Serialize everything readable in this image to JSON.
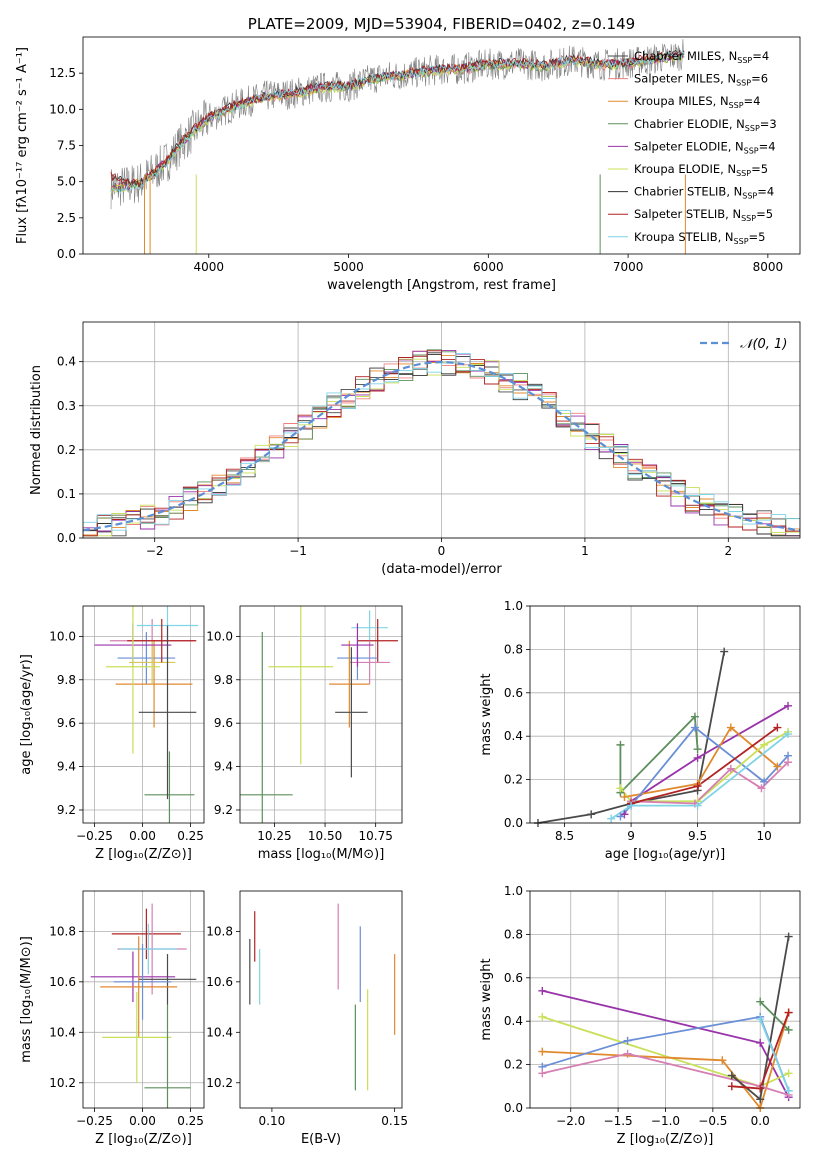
{
  "figure_title": "PLATE=2009, MJD=53904, FIBERID=0402, z=0.149",
  "chart_data": [
    {
      "id": "spectrum",
      "type": "line",
      "title": "PLATE=2009, MJD=53904, FIBERID=0402, z=0.149",
      "xlabel": "wavelength [Angstrom, rest frame]",
      "ylabel": "Flux [fλ10⁻¹⁷ erg cm⁻² s⁻¹ A⁻¹]",
      "xlim": [
        3100,
        8230
      ],
      "ylim": [
        0,
        15
      ],
      "xticks": [
        4000,
        5000,
        6000,
        7000,
        8000
      ],
      "yticks": [
        0.0,
        2.5,
        5.0,
        7.5,
        10.0,
        12.5
      ],
      "grid": false,
      "legend_placement": "top-right",
      "x": [
        3300,
        3400,
        3500,
        3600,
        3700,
        3800,
        3900,
        4000,
        4200,
        4400,
        4600,
        4800,
        5000,
        5200,
        5400,
        5600,
        5800,
        6000,
        6200,
        6400,
        6600,
        6800,
        7000,
        7200,
        7400
      ],
      "series": [
        {
          "name": "Chabrier MILES, N_SSP=4",
          "color": "#4a4a4a",
          "values": [
            4.6,
            4.7,
            4.9,
            5.6,
            6.4,
            7.6,
            8.6,
            9.4,
            10.3,
            10.9,
            11.1,
            11.5,
            11.6,
            12.2,
            12.4,
            12.7,
            12.8,
            13.1,
            13.2,
            13.0,
            13.4,
            13.1,
            13.2,
            13.5,
            13.8
          ]
        },
        {
          "name": "Salpeter MILES, N_SSP=6",
          "color": "#f08080",
          "values": [
            4.6,
            4.7,
            4.8,
            5.5,
            6.3,
            7.5,
            8.5,
            9.3,
            10.2,
            10.8,
            11.0,
            11.4,
            11.5,
            12.1,
            12.3,
            12.6,
            12.7,
            13.0,
            13.1,
            12.9,
            13.3,
            13.0,
            13.1,
            13.4,
            13.7
          ]
        },
        {
          "name": "Kroupa MILES, N_SSP=4",
          "color": "#e08a2e",
          "values": [
            4.6,
            4.7,
            4.9,
            5.5,
            6.4,
            7.6,
            8.6,
            9.4,
            10.3,
            10.8,
            11.1,
            11.5,
            11.6,
            12.2,
            12.4,
            12.7,
            12.8,
            13.1,
            13.2,
            13.0,
            13.4,
            13.1,
            13.2,
            13.5,
            13.8
          ]
        },
        {
          "name": "Chabrier ELODIE, N_SSP=3",
          "color": "#5c8f5c",
          "values": [
            4.5,
            4.6,
            4.8,
            5.4,
            6.3,
            7.5,
            8.5,
            9.3,
            10.2,
            10.8,
            11.0,
            11.4,
            11.5,
            12.1,
            12.3,
            12.6,
            12.7,
            13.0,
            13.1,
            12.9,
            13.3,
            13.0,
            13.1,
            13.4,
            13.7
          ]
        },
        {
          "name": "Salpeter ELODIE, N_SSP=4",
          "color": "#9933aa",
          "values": [
            4.6,
            4.7,
            4.9,
            5.6,
            6.4,
            7.6,
            8.6,
            9.4,
            10.3,
            10.9,
            11.1,
            11.5,
            11.6,
            12.2,
            12.4,
            12.7,
            12.8,
            13.1,
            13.2,
            13.0,
            13.4,
            13.1,
            13.2,
            13.5,
            13.8
          ]
        },
        {
          "name": "Kroupa ELODIE, N_SSP=5",
          "color": "#c8e05a",
          "values": [
            4.5,
            4.6,
            4.8,
            5.5,
            6.3,
            7.5,
            8.5,
            9.3,
            10.2,
            10.8,
            11.0,
            11.4,
            11.5,
            12.1,
            12.3,
            12.6,
            12.7,
            13.0,
            13.1,
            12.9,
            13.3,
            13.0,
            13.1,
            13.4,
            13.7
          ]
        },
        {
          "name": "Chabrier STELIB, N_SSP=4",
          "color": "#333333",
          "values": [
            5.5,
            5.0,
            4.8,
            5.6,
            6.5,
            7.7,
            8.7,
            9.5,
            10.4,
            10.9,
            11.2,
            11.6,
            11.7,
            12.3,
            12.5,
            12.8,
            12.9,
            13.2,
            13.3,
            13.1,
            13.5,
            13.2,
            13.3,
            13.6,
            13.9
          ]
        },
        {
          "name": "Salpeter STELIB, N_SSP=5",
          "color": "#b22222",
          "values": [
            5.4,
            5.0,
            4.8,
            5.6,
            6.5,
            7.7,
            8.7,
            9.5,
            10.4,
            10.9,
            11.2,
            11.6,
            11.7,
            12.3,
            12.5,
            12.8,
            12.9,
            13.2,
            13.3,
            13.1,
            13.5,
            13.2,
            13.3,
            13.6,
            13.9
          ]
        },
        {
          "name": "Kroupa STELIB, N_SSP=5",
          "color": "#7fd4e6",
          "values": [
            4.4,
            4.5,
            4.7,
            5.4,
            6.3,
            7.5,
            8.5,
            9.3,
            10.2,
            10.9,
            11.1,
            11.5,
            11.6,
            12.2,
            12.4,
            12.7,
            12.8,
            13.1,
            13.2,
            13.0,
            13.4,
            13.1,
            13.2,
            13.5,
            13.8
          ]
        }
      ]
    },
    {
      "id": "residuals",
      "type": "histogram",
      "xlabel": "(data-model)/error",
      "ylabel": "Normed distribution",
      "xlim": [
        -2.5,
        2.5
      ],
      "ylim": [
        0,
        0.49
      ],
      "xticks": [
        -2,
        -1,
        0,
        1,
        2
      ],
      "xticklabels": [
        "−2",
        "−1",
        "0",
        "1",
        "2"
      ],
      "yticks": [
        0.0,
        0.1,
        0.2,
        0.3,
        0.4
      ],
      "grid": true,
      "legend_placement": "top-right",
      "legend_label": "𝒩(0, 1)",
      "bin_width": 0.1
    },
    {
      "id": "z-age",
      "type": "errorbar",
      "xlabel": "Z [log₁₀(Z/Z⊙)]",
      "ylabel": "age  [log₁₀(age/yr)]",
      "xlim": [
        -0.31,
        0.32
      ],
      "ylim": [
        9.14,
        10.14
      ],
      "xticks": [
        -0.25,
        0.0,
        0.25
      ],
      "xticklabels": [
        "−0.25",
        "0.00",
        "0.25"
      ],
      "yticks": [
        9.2,
        9.4,
        9.6,
        9.8,
        10.0
      ],
      "grid": true,
      "points": [
        {
          "x": 0.02,
          "xerr": 0.15,
          "y": 9.9,
          "yerr": 0.12,
          "color": "#6a8fd6"
        },
        {
          "x": 0.05,
          "xerr": 0.22,
          "y": 9.98,
          "yerr": 0.1,
          "color": "#d67fb2"
        },
        {
          "x": 0.06,
          "xerr": 0.2,
          "y": 9.78,
          "yerr": 0.2,
          "color": "#e08a2e"
        },
        {
          "x": 0.13,
          "xerr": 0.16,
          "y": 10.05,
          "yerr": 0.1,
          "color": "#7fd4e6"
        },
        {
          "x": 0.14,
          "xerr": 0.13,
          "y": 9.27,
          "yerr": 0.2,
          "color": "#5c8f5c"
        },
        {
          "x": 0.05,
          "xerr": 0.12,
          "y": 9.88,
          "yerr": 0.1,
          "color": "#d6c95a"
        },
        {
          "x": -0.05,
          "xerr": 0.2,
          "y": 9.96,
          "yerr": 0.1,
          "color": "#9933aa"
        },
        {
          "x": 0.1,
          "xerr": 0.18,
          "y": 9.98,
          "yerr": 0.1,
          "color": "#b22222"
        },
        {
          "x": -0.05,
          "xerr": 0.14,
          "y": 9.86,
          "yerr": 0.4,
          "color": "#c8e05a"
        },
        {
          "x": 0.13,
          "xerr": 0.15,
          "y": 9.65,
          "yerr": 0.4,
          "color": "#4a4a4a"
        }
      ]
    },
    {
      "id": "mass-age",
      "type": "errorbar",
      "xlabel": "mass [log₁₀(M/M⊙)]",
      "ylabel": "",
      "xlim": [
        10.08,
        10.88
      ],
      "ylim": [
        9.14,
        10.14
      ],
      "xticks": [
        10.25,
        10.5,
        10.75
      ],
      "xticklabels": [
        "10.25",
        "10.50",
        "10.75"
      ],
      "yticks": [
        9.2,
        9.4,
        9.6,
        9.8,
        10.0
      ],
      "grid": true,
      "points": [
        {
          "x": 10.72,
          "xerr": 0.09,
          "y": 10.04,
          "yerr": 0.08,
          "color": "#7fd4e6"
        },
        {
          "x": 10.76,
          "xerr": 0.1,
          "y": 9.98,
          "yerr": 0.1,
          "color": "#b22222"
        },
        {
          "x": 10.72,
          "xerr": 0.1,
          "y": 9.88,
          "yerr": 0.1,
          "color": "#d67fb2"
        },
        {
          "x": 10.66,
          "xerr": 0.1,
          "y": 9.9,
          "yerr": 0.1,
          "color": "#6a8fd6"
        },
        {
          "x": 10.62,
          "xerr": 0.1,
          "y": 9.78,
          "yerr": 0.2,
          "color": "#e08a2e"
        },
        {
          "x": 10.63,
          "xerr": 0.08,
          "y": 9.65,
          "yerr": 0.3,
          "color": "#4a4a4a"
        },
        {
          "x": 10.38,
          "xerr": 0.16,
          "y": 9.86,
          "yerr": 0.45,
          "color": "#c8e05a"
        },
        {
          "x": 10.19,
          "xerr": 0.15,
          "y": 9.27,
          "yerr": 0.75,
          "color": "#5c8f5c"
        },
        {
          "x": 10.66,
          "xerr": 0.08,
          "y": 9.96,
          "yerr": 0.1,
          "color": "#9933aa"
        }
      ]
    },
    {
      "id": "age-weight",
      "type": "line",
      "xlabel": "age  [log₁₀(age/yr)]",
      "ylabel": "mass weight",
      "xlim": [
        8.24,
        10.27
      ],
      "ylim": [
        0,
        1
      ],
      "xticks": [
        8.5,
        9.0,
        9.5,
        10.0
      ],
      "yticks": [
        0.0,
        0.2,
        0.4,
        0.6,
        0.8,
        1.0
      ],
      "grid": true,
      "series": [
        {
          "color": "#4a4a4a",
          "x": [
            8.3,
            8.7,
            9.0,
            9.5,
            9.7
          ],
          "y": [
            0.0,
            0.04,
            0.09,
            0.15,
            0.79
          ]
        },
        {
          "color": "#9933aa",
          "x": [
            8.95,
            9.0,
            9.5,
            10.18
          ],
          "y": [
            0.04,
            0.1,
            0.3,
            0.54
          ]
        },
        {
          "color": "#e08a2e",
          "x": [
            8.95,
            9.5,
            9.75,
            10.1
          ],
          "y": [
            0.12,
            0.18,
            0.44,
            0.26
          ]
        },
        {
          "color": "#5c8f5c",
          "x": [
            8.92,
            8.92,
            9.48,
            9.5
          ],
          "y": [
            0.36,
            0.14,
            0.49,
            0.34
          ]
        },
        {
          "color": "#6a8fd6",
          "x": [
            8.92,
            9.0,
            9.48,
            10.0,
            10.18
          ],
          "y": [
            0.03,
            0.08,
            0.44,
            0.19,
            0.31
          ]
        },
        {
          "color": "#c8e05a",
          "x": [
            8.92,
            9.0,
            9.5,
            10.0,
            10.18
          ],
          "y": [
            0.16,
            0.1,
            0.1,
            0.36,
            0.42
          ]
        },
        {
          "color": "#d67fb2",
          "x": [
            9.0,
            9.48,
            9.75,
            9.98,
            10.18
          ],
          "y": [
            0.1,
            0.09,
            0.25,
            0.16,
            0.28
          ]
        },
        {
          "color": "#b22222",
          "x": [
            9.0,
            9.5,
            10.1
          ],
          "y": [
            0.09,
            0.17,
            0.44
          ]
        },
        {
          "color": "#7fd4e6",
          "x": [
            8.85,
            9.0,
            9.5,
            10.18
          ],
          "y": [
            0.02,
            0.08,
            0.08,
            0.41
          ]
        }
      ]
    },
    {
      "id": "z-mass",
      "type": "errorbar",
      "xlabel": "Z [log₁₀(Z/Z⊙)]",
      "ylabel": "mass [log₁₀(M/M⊙)]",
      "xlim": [
        -0.31,
        0.32
      ],
      "ylim": [
        10.1,
        10.96
      ],
      "xticks": [
        -0.25,
        0.0,
        0.25
      ],
      "xticklabels": [
        "−0.25",
        "0.00",
        "0.25"
      ],
      "yticks": [
        10.2,
        10.4,
        10.6,
        10.8
      ],
      "grid": true,
      "points": [
        {
          "x": 0.02,
          "xerr": 0.18,
          "y": 10.79,
          "yerr": 0.1,
          "color": "#b22222"
        },
        {
          "x": 0.05,
          "xerr": 0.18,
          "y": 10.73,
          "yerr": 0.18,
          "color": "#d67fb2"
        },
        {
          "x": 0.03,
          "xerr": 0.15,
          "y": 10.73,
          "yerr": 0.1,
          "color": "#7fd4e6"
        },
        {
          "x": -0.05,
          "xerr": 0.22,
          "y": 10.62,
          "yerr": 0.1,
          "color": "#9933aa"
        },
        {
          "x": 0.13,
          "xerr": 0.15,
          "y": 10.61,
          "yerr": 0.1,
          "color": "#4a4a4a"
        },
        {
          "x": -0.02,
          "xerr": 0.2,
          "y": 10.58,
          "yerr": 0.2,
          "color": "#e08a2e"
        },
        {
          "x": 0.0,
          "xerr": 0.15,
          "y": 10.6,
          "yerr": 0.15,
          "color": "#6a8fd6"
        },
        {
          "x": -0.03,
          "xerr": 0.18,
          "y": 10.38,
          "yerr": 0.18,
          "color": "#c8e05a"
        },
        {
          "x": 0.13,
          "xerr": 0.12,
          "y": 10.18,
          "yerr": 0.33,
          "color": "#5c8f5c"
        }
      ]
    },
    {
      "id": "ebv-mass",
      "type": "errorbar",
      "xlabel": "E(B-V)",
      "ylabel": "",
      "xlim": [
        0.087,
        0.153
      ],
      "ylim": [
        10.1,
        10.96
      ],
      "xticks": [
        0.1,
        0.15
      ],
      "xticklabels": [
        "0.10",
        "0.15"
      ],
      "yticks": [
        10.2,
        10.4,
        10.6,
        10.8
      ],
      "grid": false,
      "points": [
        {
          "x": 0.091,
          "y": 10.64,
          "yerr": 0.13,
          "color": "#4a4a4a"
        },
        {
          "x": 0.093,
          "y": 10.78,
          "yerr": 0.1,
          "color": "#b22222"
        },
        {
          "x": 0.095,
          "y": 10.62,
          "yerr": 0.11,
          "color": "#7fd4e6"
        },
        {
          "x": 0.127,
          "y": 10.74,
          "yerr": 0.17,
          "color": "#d67fb2"
        },
        {
          "x": 0.134,
          "y": 10.34,
          "yerr": 0.17,
          "color": "#5c8f5c"
        },
        {
          "x": 0.136,
          "y": 10.67,
          "yerr": 0.15,
          "color": "#6a8fd6"
        },
        {
          "x": 0.139,
          "y": 10.37,
          "yerr": 0.2,
          "color": "#c8e05a"
        },
        {
          "x": 0.15,
          "y": 10.55,
          "yerr": 0.16,
          "color": "#e08a2e"
        }
      ]
    },
    {
      "id": "z-weight",
      "type": "line",
      "xlabel": "Z [log₁₀(Z/Z⊙)]",
      "ylabel": "mass weight",
      "xlim": [
        -2.43,
        0.42
      ],
      "ylim": [
        0,
        1
      ],
      "xticks": [
        -2.0,
        -1.5,
        -1.0,
        -0.5,
        0.0
      ],
      "xticklabels": [
        "−2.0",
        "−1.5",
        "−1.0",
        "−0.5",
        "0.0"
      ],
      "yticks": [
        0.0,
        0.2,
        0.4,
        0.6,
        0.8,
        1.0
      ],
      "grid": true,
      "series": [
        {
          "color": "#9933aa",
          "x": [
            -2.3,
            0.0,
            0.3
          ],
          "y": [
            0.54,
            0.3,
            0.05
          ]
        },
        {
          "color": "#c8e05a",
          "x": [
            -2.3,
            0.0,
            0.3
          ],
          "y": [
            0.42,
            0.1,
            0.16
          ]
        },
        {
          "color": "#e08a2e",
          "x": [
            -2.3,
            -0.4,
            0.0,
            0.3
          ],
          "y": [
            0.26,
            0.22,
            0.0,
            0.44
          ]
        },
        {
          "color": "#6a8fd6",
          "x": [
            -2.3,
            -1.4,
            0.0,
            0.3
          ],
          "y": [
            0.19,
            0.31,
            0.42,
            0.08
          ]
        },
        {
          "color": "#d67fb2",
          "x": [
            -2.3,
            -1.4,
            0.0,
            0.3
          ],
          "y": [
            0.16,
            0.25,
            0.1,
            0.06
          ]
        },
        {
          "color": "#4a4a4a",
          "x": [
            -0.3,
            0.0,
            0.3
          ],
          "y": [
            0.15,
            0.04,
            0.79
          ]
        },
        {
          "color": "#5c8f5c",
          "x": [
            0.0,
            0.3
          ],
          "y": [
            0.49,
            0.36
          ]
        },
        {
          "color": "#b22222",
          "x": [
            -0.3,
            0.0,
            0.3
          ],
          "y": [
            0.1,
            0.09,
            0.44
          ]
        },
        {
          "color": "#7fd4e6",
          "x": [
            0.0,
            0.3
          ],
          "y": [
            0.41,
            0.08
          ]
        }
      ]
    }
  ]
}
